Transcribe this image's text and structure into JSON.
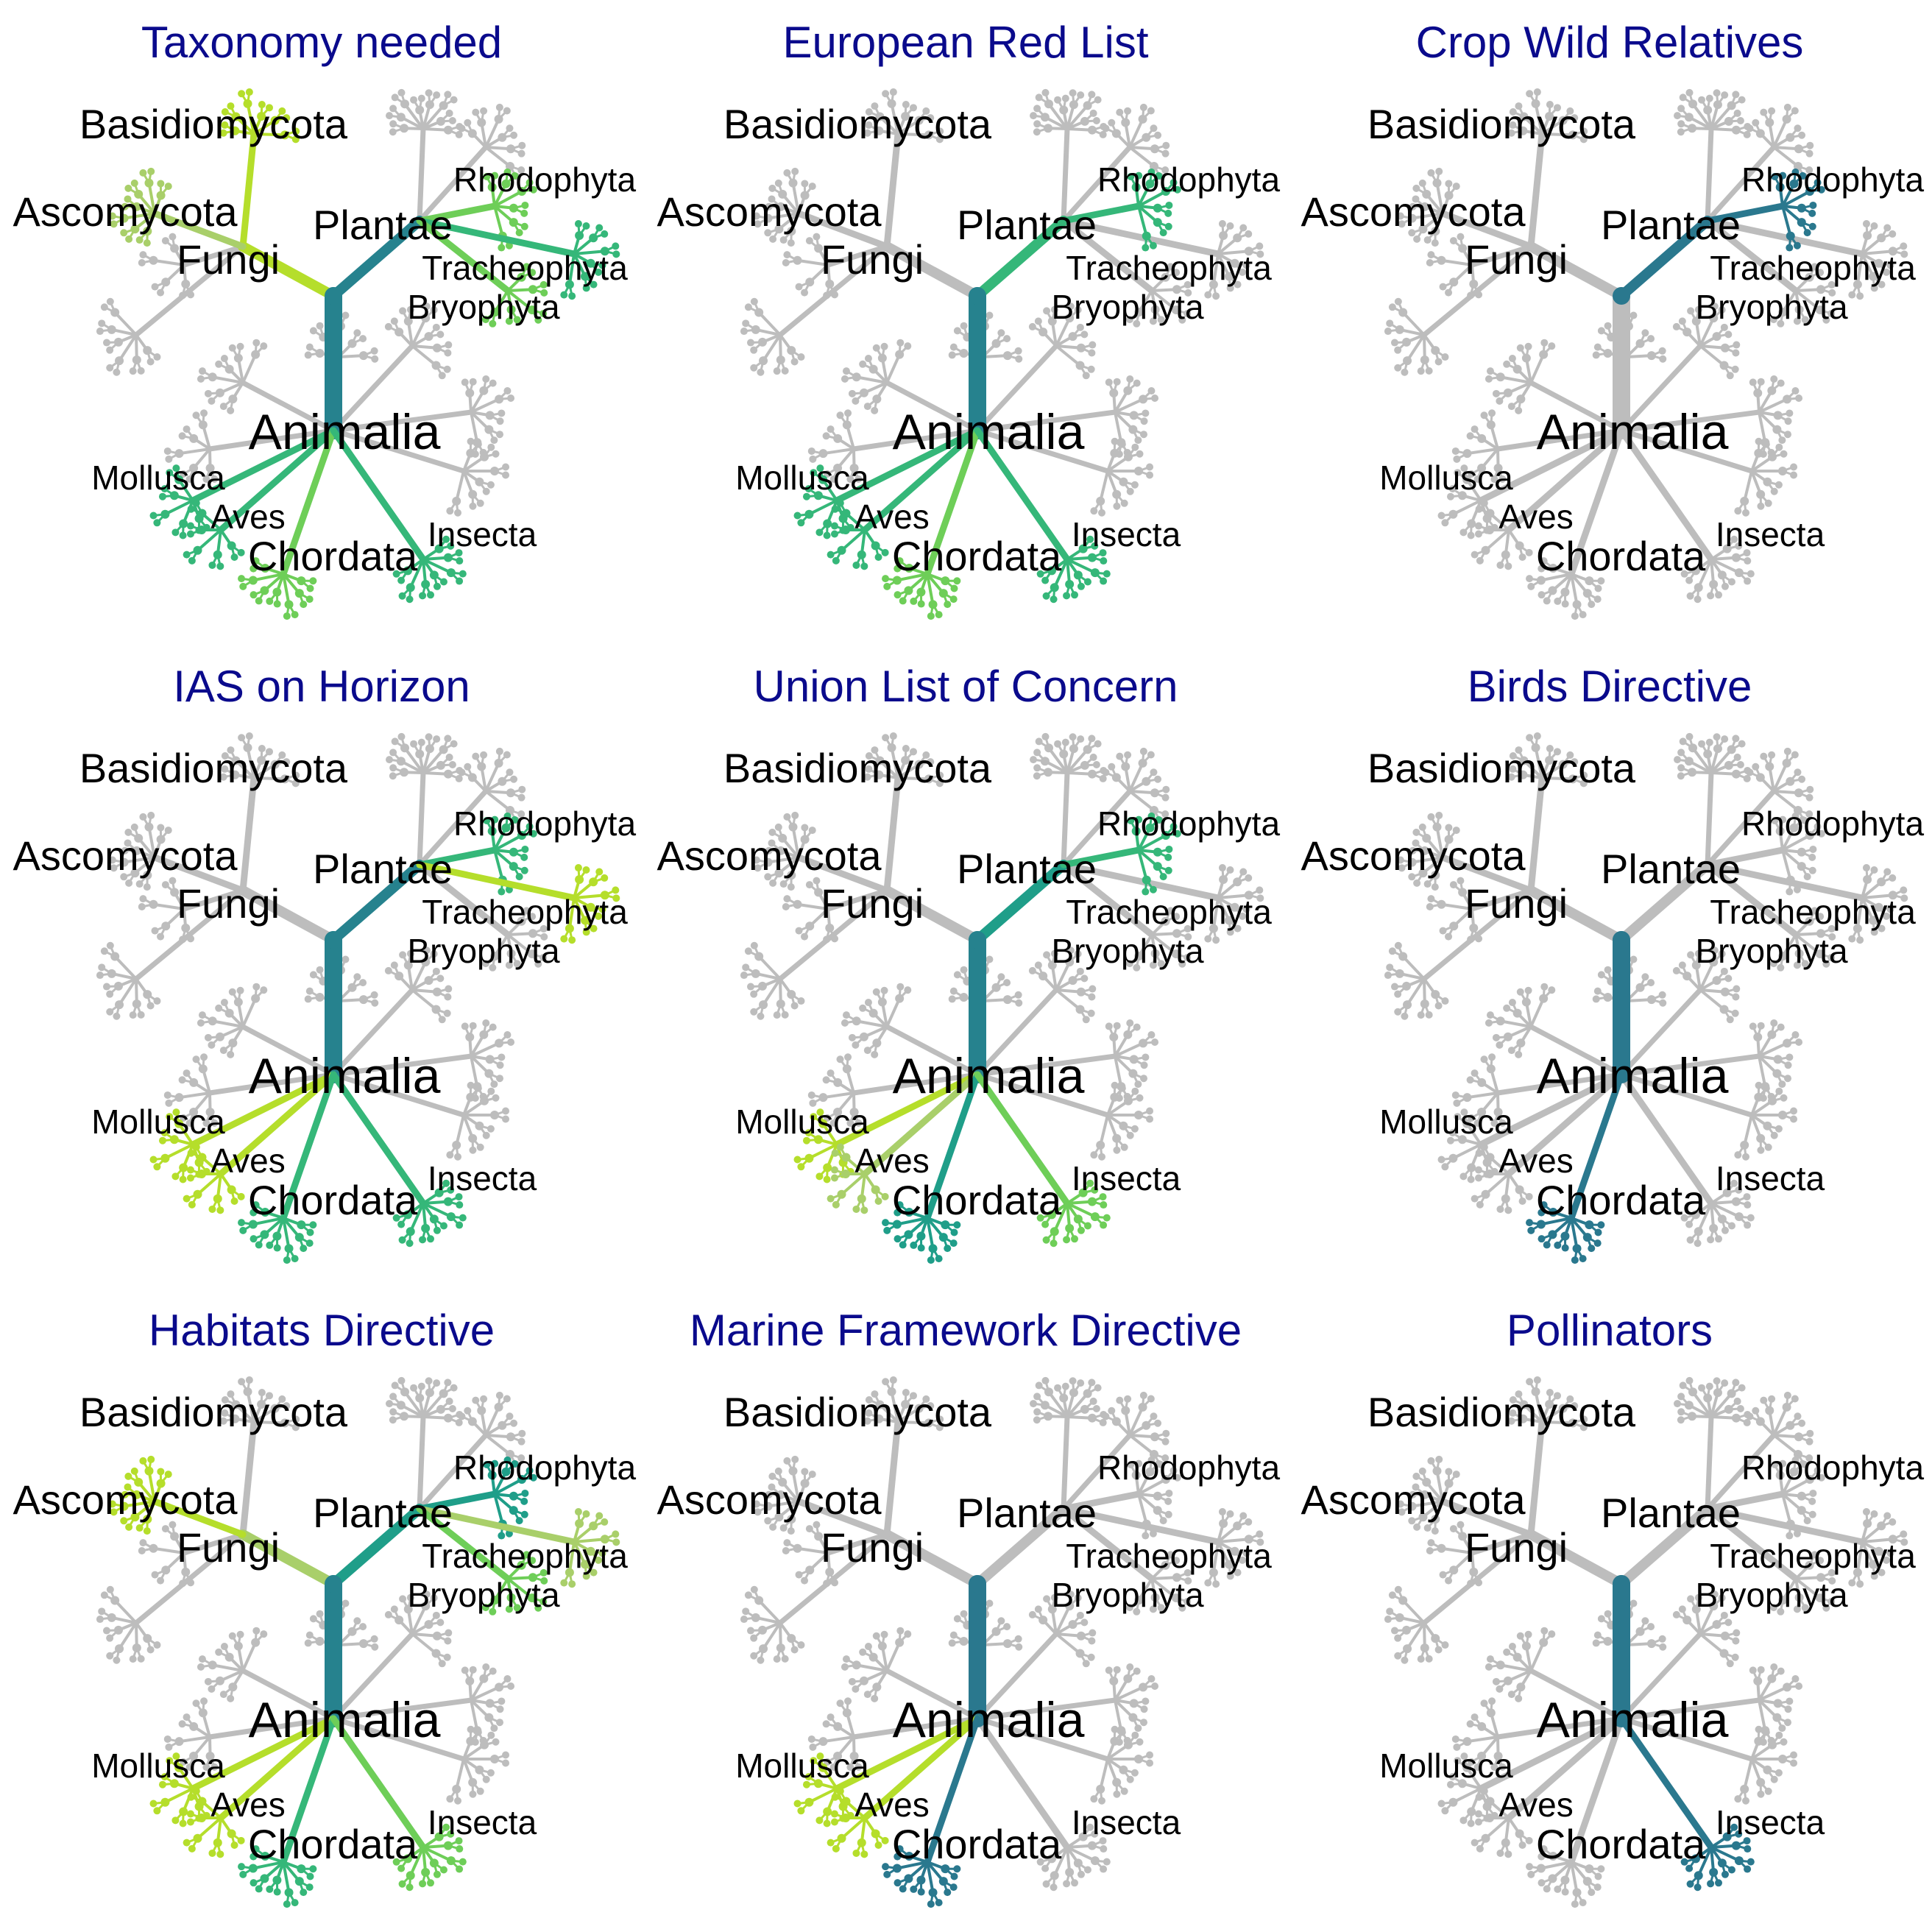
{
  "figure": {
    "labels": {
      "animalia": "Animalia",
      "plantae": "Plantae",
      "fungi": "Fungi",
      "basidiomycota": "Basidiomycota",
      "ascomycota": "Ascomycota",
      "rhodophyta": "Rhodophyta",
      "tracheophyta": "Tracheophyta",
      "bryophyta": "Bryophyta",
      "mollusca": "Mollusca",
      "aves": "Aves",
      "chordata": "Chordata",
      "insecta": "Insecta"
    },
    "colors": {
      "inactive": "#bdbdbd",
      "title": "#0a0a8c",
      "palette": [
        "#26828e",
        "#1f9e89",
        "#35b779",
        "#6ece58",
        "#b5de2b",
        "#a9cf6a"
      ]
    },
    "panels": [
      {
        "title": "Taxonomy needed",
        "highlight": {
          "plantae": "#26828e",
          "animalia": "#26828e",
          "fungi": "#b5de2b",
          "basidiomycota": "#b5de2b",
          "ascomycota": "#a9cf6a",
          "rhodophyta": "#6ece58",
          "tracheophyta": "#35b779",
          "bryophyta": "#6ece58",
          "mollusca": "#35b779",
          "aves": "#35b779",
          "chordata": "#6ece58",
          "insecta": "#35b779"
        }
      },
      {
        "title": "European Red List",
        "highlight": {
          "plantae": "#35b779",
          "animalia": "#26828e",
          "rhodophyta": "#35b779",
          "mollusca": "#35b779",
          "aves": "#35b779",
          "chordata": "#6ece58",
          "insecta": "#35b779"
        }
      },
      {
        "title": "Crop Wild Relatives",
        "highlight": {
          "plantae": "#2a788e",
          "rhodophyta": "#2a788e"
        }
      },
      {
        "title": "IAS on Horizon",
        "highlight": {
          "plantae": "#26828e",
          "animalia": "#26828e",
          "rhodophyta": "#35b779",
          "tracheophyta": "#b5de2b",
          "mollusca": "#b5de2b",
          "aves": "#b5de2b",
          "chordata": "#35b779",
          "insecta": "#35b779"
        }
      },
      {
        "title": "Union List of Concern",
        "highlight": {
          "plantae": "#1f9e89",
          "animalia": "#26828e",
          "rhodophyta": "#35b779",
          "mollusca": "#b5de2b",
          "aves": "#a9cf6a",
          "chordata": "#1f9e89",
          "insecta": "#6ece58"
        }
      },
      {
        "title": "Birds Directive",
        "highlight": {
          "animalia": "#2a788e",
          "chordata": "#2a788e"
        }
      },
      {
        "title": "Habitats Directive",
        "highlight": {
          "plantae": "#1f9e89",
          "animalia": "#26828e",
          "fungi": "#a9cf6a",
          "ascomycota": "#b5de2b",
          "rhodophyta": "#1f9e89",
          "tracheophyta": "#a9cf6a",
          "bryophyta": "#6ece58",
          "mollusca": "#b5de2b",
          "aves": "#b5de2b",
          "chordata": "#35b779",
          "insecta": "#6ece58"
        }
      },
      {
        "title": "Marine Framework Directive",
        "highlight": {
          "animalia": "#2a788e",
          "mollusca": "#b5de2b",
          "aves": "#b5de2b",
          "chordata": "#2a788e"
        }
      },
      {
        "title": "Pollinators",
        "highlight": {
          "animalia": "#2a788e",
          "insecta": "#2a788e"
        }
      }
    ]
  }
}
